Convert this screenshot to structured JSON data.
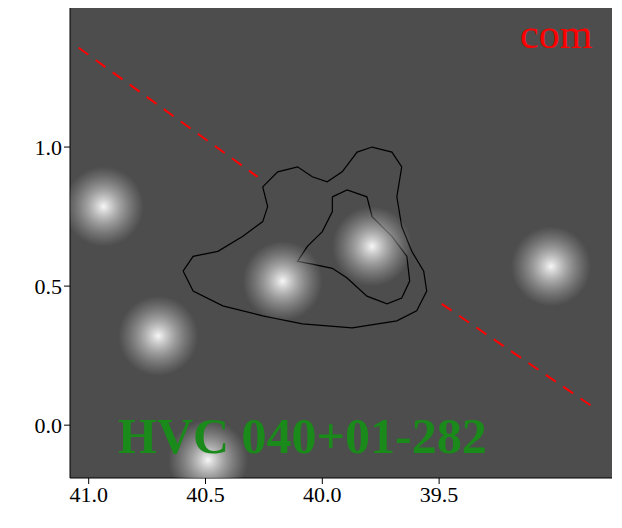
{
  "chart_data": {
    "type": "contour",
    "xlim": [
      41.08,
      38.76
    ],
    "ylim": [
      -0.19,
      1.5
    ],
    "xticks": [
      {
        "value": 41,
        "label": "41.0"
      },
      {
        "value": 40.5,
        "label": "40.5"
      },
      {
        "value": 40,
        "label": "40.0"
      },
      {
        "value": 39.5,
        "label": "39.5"
      }
    ],
    "yticks": [
      {
        "value": 0,
        "label": "0.0"
      },
      0.5,
      {
        "value": 1,
        "label": "1.0"
      }
    ],
    "annotations": [
      {
        "text": "HVC 040+01-282",
        "color": "#1a8a1a"
      },
      {
        "text": "com",
        "color": "#ff0000"
      }
    ],
    "bright_spots": {
      "x": [
        39.787,
        40.17,
        40.702,
        40.936,
        40.489,
        39.021
      ],
      "y": [
        0.643,
        0.518,
        0.321,
        0.786,
        -0.125,
        0.571
      ]
    },
    "series": [
      {
        "color": "#000000",
        "line_style": "solid",
        "x": [
          40.596,
          40.553,
          40.426,
          40.255,
          40.085,
          39.872,
          39.681,
          39.596,
          39.553,
          39.566,
          39.617,
          39.66,
          39.681,
          39.66,
          39.702,
          39.787,
          39.851,
          39.915,
          39.979,
          40.043,
          40.106,
          40.191,
          40.255,
          40.234,
          40.255,
          40.34,
          40.447,
          40.553,
          40.596
        ],
        "y": [
          0.554,
          0.482,
          0.429,
          0.393,
          0.364,
          0.35,
          0.375,
          0.411,
          0.482,
          0.554,
          0.625,
          0.714,
          0.821,
          0.929,
          0.982,
          1.0,
          0.982,
          0.911,
          0.875,
          0.893,
          0.929,
          0.911,
          0.857,
          0.786,
          0.732,
          0.679,
          0.625,
          0.607,
          0.554
        ]
      },
      {
        "color": "#000000",
        "line_style": "solid",
        "x": [
          39.957,
          39.894,
          39.809,
          39.787,
          39.702,
          39.638,
          39.626,
          39.66,
          39.723,
          39.809,
          39.894,
          39.957,
          40.043,
          40.106,
          40.064,
          40.0,
          39.957,
          39.957
        ],
        "y": [
          0.821,
          0.846,
          0.821,
          0.75,
          0.679,
          0.607,
          0.518,
          0.457,
          0.436,
          0.464,
          0.529,
          0.564,
          0.579,
          0.589,
          0.643,
          0.696,
          0.768,
          0.821
        ]
      },
      {
        "color": "#ff0000",
        "line_style": "dashed",
        "x": [
          41.043,
          40.277,
          39.88,
          39.489,
          38.851
        ],
        "y": [
          1.357,
          0.893,
          null,
          0.436,
          0.071
        ]
      }
    ]
  }
}
